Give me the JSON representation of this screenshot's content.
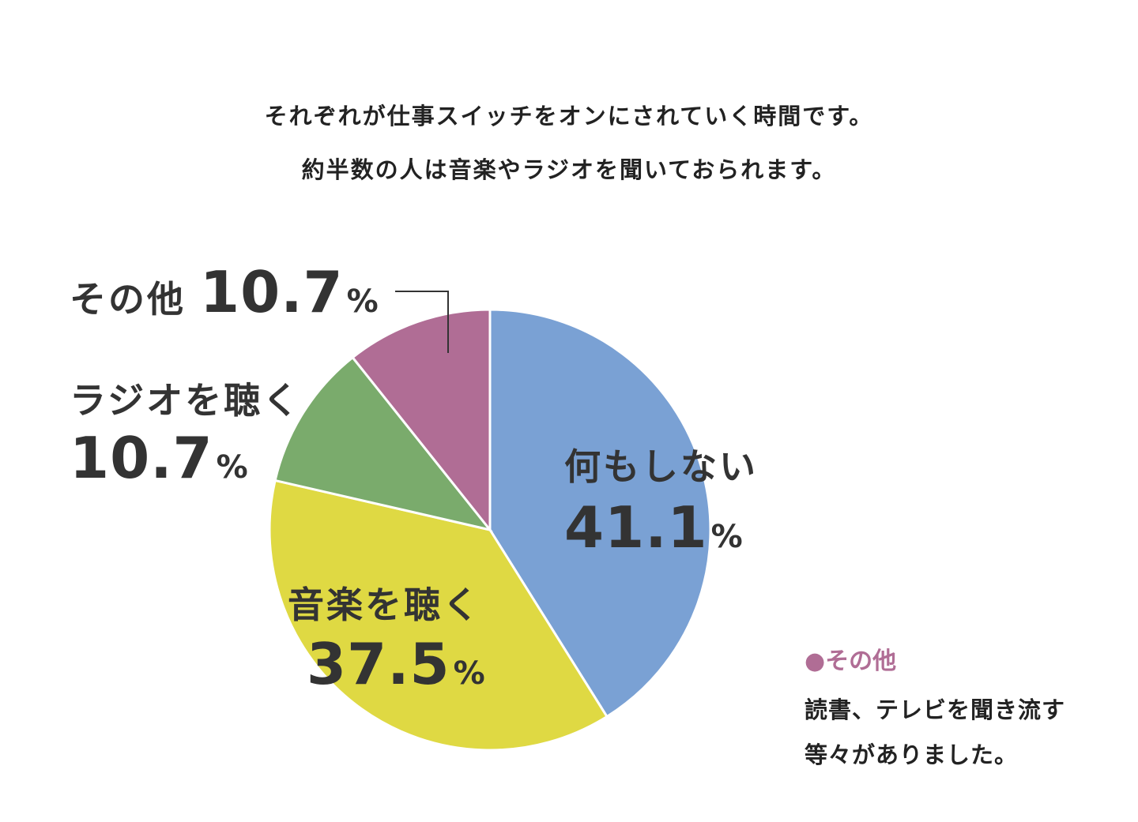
{
  "intro": {
    "line1": "それぞれが仕事スイッチをオンにされていく時間です。",
    "line2": "約半数の人は音楽やラジオを聞いておられます。"
  },
  "chart_data": {
    "type": "pie",
    "start_angle_deg": 0,
    "direction": "clockwise",
    "slices": [
      {
        "label": "何もしない",
        "value": 41.1,
        "value_label": "41.1",
        "unit": "%",
        "color": "#7aa1d4"
      },
      {
        "label": "音楽を聴く",
        "value": 37.5,
        "value_label": "37.5",
        "unit": "%",
        "color": "#dfd943"
      },
      {
        "label": "ラジオを聴く",
        "value": 10.7,
        "value_label": "10.7",
        "unit": "%",
        "color": "#7aab6c"
      },
      {
        "label": "その他",
        "value": 10.7,
        "value_label": "10.7",
        "unit": "%",
        "color": "#b06d95"
      }
    ]
  },
  "note": {
    "bullet": "●",
    "title": "その他",
    "title_color": "#b06d95",
    "line1": "読書、テレビを聞き流す",
    "line2": "等々がありました。"
  }
}
